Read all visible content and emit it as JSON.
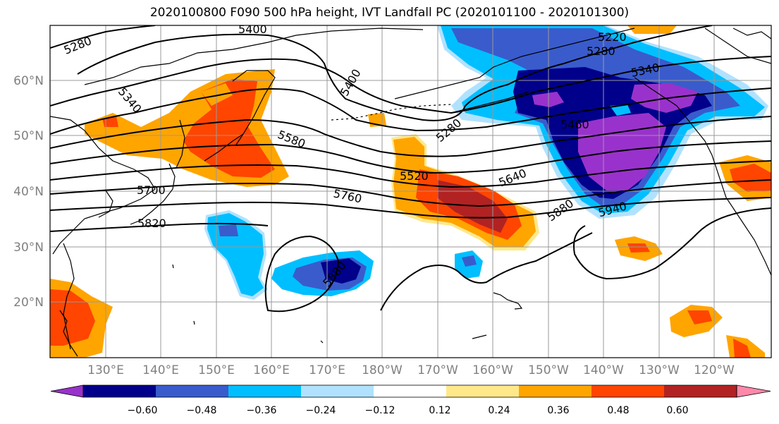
{
  "title": "2020100800 F090 500 hPa height, IVT Landfall PC (2020101100 - 2020101300)",
  "lat_labels": [
    "60°N",
    "50°N",
    "40°N",
    "30°N",
    "20°N"
  ],
  "lon_labels": [
    "130°E",
    "140°E",
    "150°E",
    "160°E",
    "170°E",
    "180°W",
    "170°W",
    "160°W",
    "150°W",
    "140°W",
    "130°W",
    "120°W"
  ],
  "contour_labels": [
    "5280",
    "5400",
    "5220",
    "5280",
    "5340",
    "5340",
    "5400",
    "5280",
    "5460",
    "5580",
    "5520",
    "5640",
    "5700",
    "5760",
    "5880",
    "5940",
    "5820",
    "5880"
  ],
  "colorbar": {
    "ticks": [
      "−0.60",
      "−0.48",
      "−0.36",
      "−0.24",
      "−0.12",
      "0.12",
      "0.24",
      "0.36",
      "0.48",
      "0.60"
    ],
    "colors": [
      "#9932cc",
      "#00008b",
      "#3a5bcc",
      "#00bfff",
      "#b0e2ff",
      "#ffffff",
      "#ffe88a",
      "#ffa500",
      "#ff4500",
      "#b22222",
      "#ff88aa"
    ]
  },
  "colors": {
    "neg_purple": "#9932cc",
    "neg_navy": "#00008b",
    "neg_blue": "#3a5bcc",
    "neg_sky": "#00bfff",
    "neg_light": "#b0e2ff",
    "pos_yellow": "#ffe88a",
    "pos_orange": "#ffa500",
    "pos_red": "#ff4500",
    "pos_dark": "#b22222",
    "pos_pink": "#ff88aa"
  }
}
